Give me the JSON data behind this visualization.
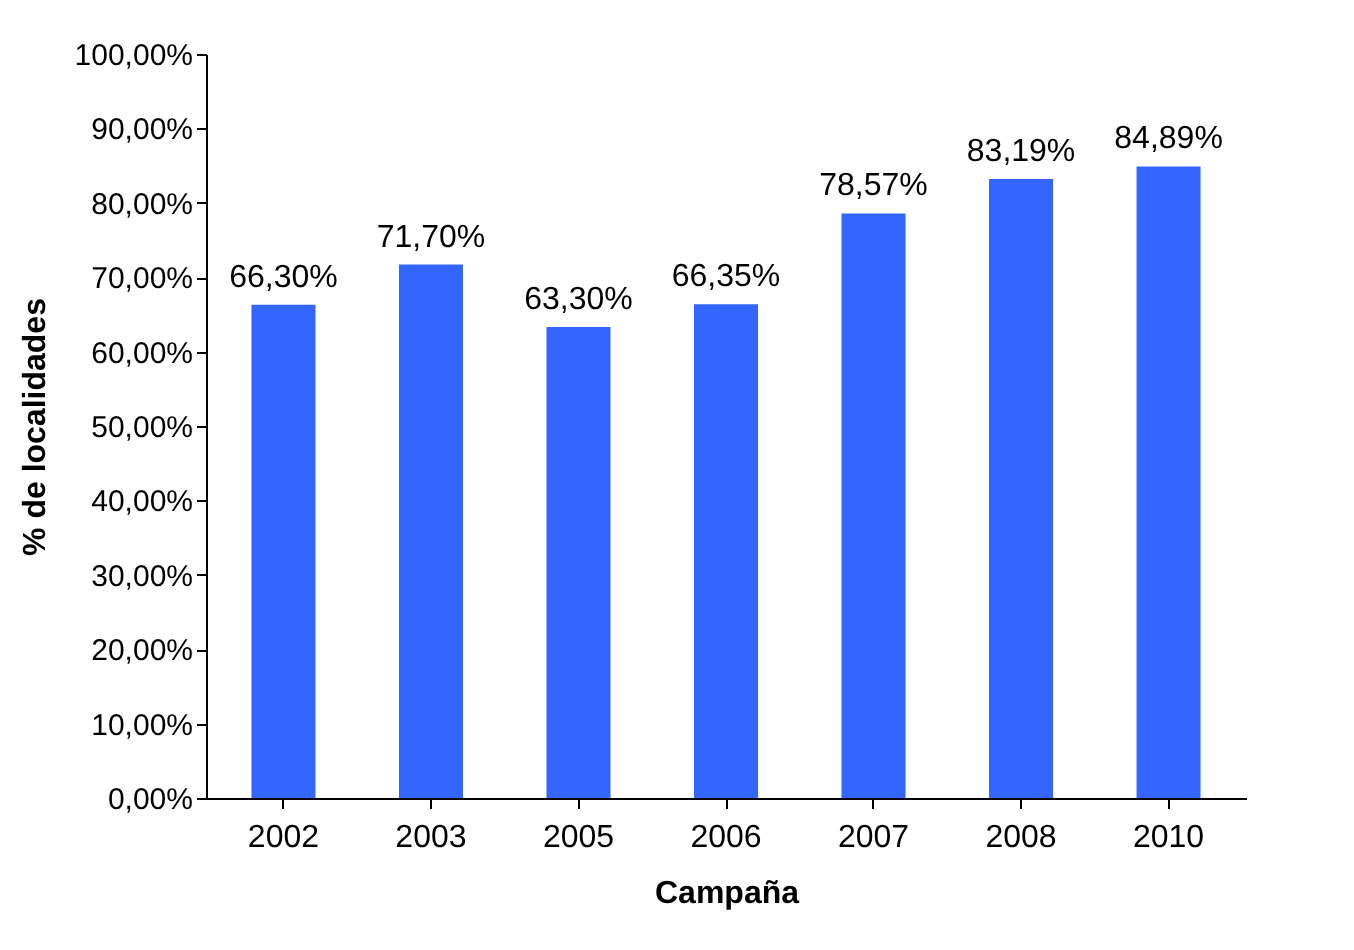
{
  "chart_data": {
    "type": "bar",
    "xlabel": "Campaña",
    "ylabel": "% de  localidades",
    "categories": [
      "2002",
      "2003",
      "2005",
      "2006",
      "2007",
      "2008",
      "2010"
    ],
    "values": [
      66.3,
      71.7,
      63.3,
      66.35,
      78.57,
      83.19,
      84.89
    ],
    "value_labels": [
      "66,30%",
      "71,70%",
      "63,30%",
      "66,35%",
      "78,57%",
      "83,19%",
      "84,89%"
    ],
    "color": "#3366ff",
    "ylim": [
      0,
      100
    ],
    "yticks": [
      {
        "value": 0,
        "label": "0,00%"
      },
      {
        "value": 10,
        "label": "10,00%"
      },
      {
        "value": 20,
        "label": "20,00%"
      },
      {
        "value": 30,
        "label": "30,00%"
      },
      {
        "value": 40,
        "label": "40,00%"
      },
      {
        "value": 50,
        "label": "50,00%"
      },
      {
        "value": 60,
        "label": "60,00%"
      },
      {
        "value": 70,
        "label": "70,00%"
      },
      {
        "value": 80,
        "label": "80,00%"
      },
      {
        "value": 90,
        "label": "90,00%"
      },
      {
        "value": 100,
        "label": "100,00%"
      }
    ]
  }
}
